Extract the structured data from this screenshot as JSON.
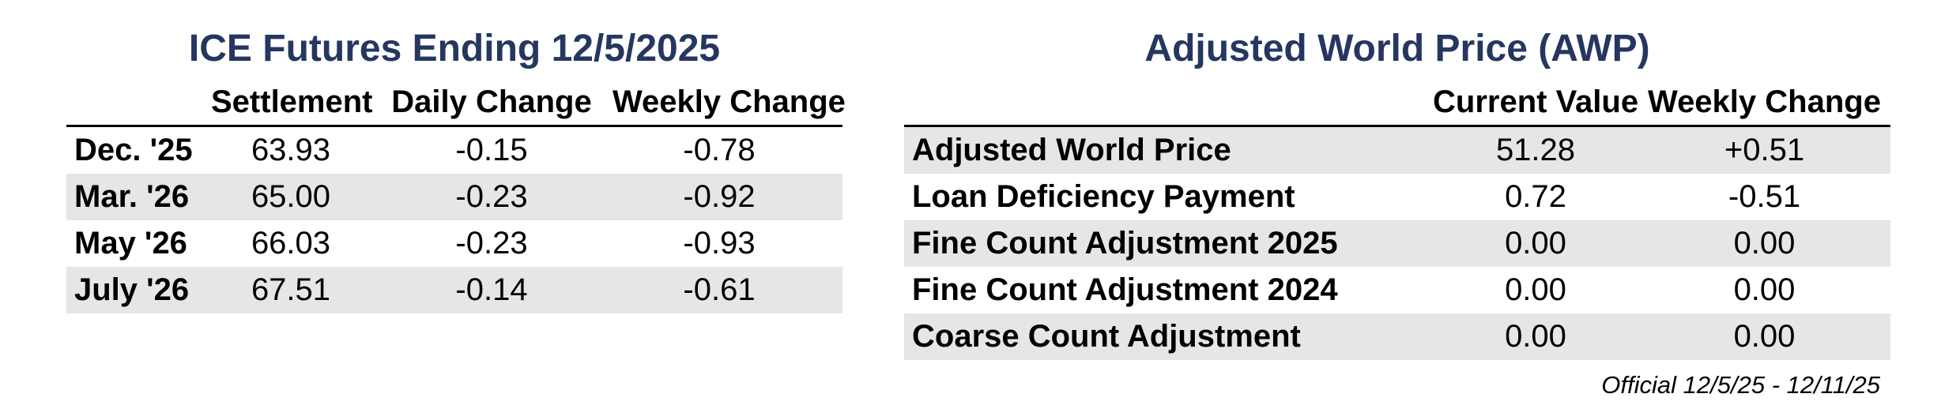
{
  "ice_futures": {
    "title": "ICE Futures Ending 12/5/2025",
    "columns": [
      "",
      "Settlement",
      "Daily Change",
      "Weekly Change"
    ],
    "rows": [
      {
        "label": "Dec. '25",
        "settlement": "63.93",
        "daily_change": "-0.15",
        "weekly_change": "-0.78"
      },
      {
        "label": "Mar. '26",
        "settlement": "65.00",
        "daily_change": "-0.23",
        "weekly_change": "-0.92"
      },
      {
        "label": "May '26",
        "settlement": "66.03",
        "daily_change": "-0.23",
        "weekly_change": "-0.93"
      },
      {
        "label": "July '26",
        "settlement": "67.51",
        "daily_change": "-0.14",
        "weekly_change": "-0.61"
      }
    ]
  },
  "awp": {
    "title": "Adjusted World Price (AWP)",
    "columns": [
      "",
      "Current Value",
      "Weekly Change"
    ],
    "rows": [
      {
        "label": "Adjusted World Price",
        "current_value": "51.28",
        "weekly_change": "+0.51"
      },
      {
        "label": "Loan Deficiency Payment",
        "current_value": "0.72",
        "weekly_change": "-0.51"
      },
      {
        "label": "Fine Count Adjustment 2025",
        "current_value": "0.00",
        "weekly_change": "0.00"
      },
      {
        "label": "Fine Count Adjustment 2024",
        "current_value": "0.00",
        "weekly_change": "0.00"
      },
      {
        "label": "Coarse Count Adjustment",
        "current_value": "0.00",
        "weekly_change": "0.00"
      }
    ],
    "footnote": "Official 12/5/25 - 12/11/25"
  },
  "colors": {
    "title": "#253760",
    "row_shade": "#e6e6e6",
    "rule": "#000000"
  }
}
